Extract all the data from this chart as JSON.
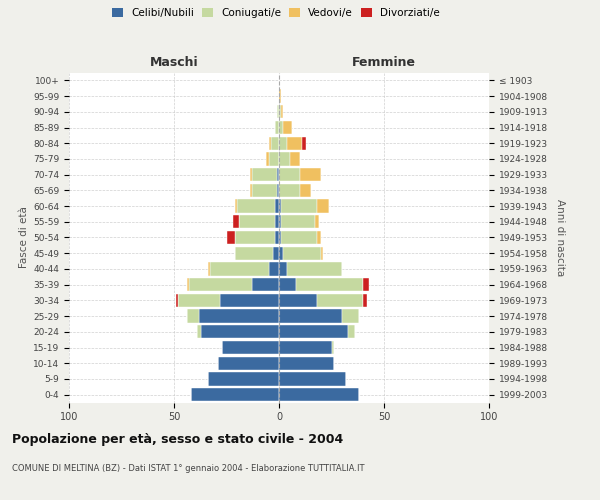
{
  "age_groups": [
    "0-4",
    "5-9",
    "10-14",
    "15-19",
    "20-24",
    "25-29",
    "30-34",
    "35-39",
    "40-44",
    "45-49",
    "50-54",
    "55-59",
    "60-64",
    "65-69",
    "70-74",
    "75-79",
    "80-84",
    "85-89",
    "90-94",
    "95-99",
    "100+"
  ],
  "birth_years": [
    "1999-2003",
    "1994-1998",
    "1989-1993",
    "1984-1988",
    "1979-1983",
    "1974-1978",
    "1969-1973",
    "1964-1968",
    "1959-1963",
    "1954-1958",
    "1949-1953",
    "1944-1948",
    "1939-1943",
    "1934-1938",
    "1929-1933",
    "1924-1928",
    "1919-1923",
    "1914-1918",
    "1909-1913",
    "1904-1908",
    "≤ 1903"
  ],
  "male": {
    "celibi": [
      42,
      34,
      29,
      27,
      37,
      38,
      28,
      13,
      5,
      3,
      2,
      2,
      2,
      1,
      1,
      0,
      0,
      0,
      0,
      0,
      0
    ],
    "coniugati": [
      0,
      0,
      0,
      0,
      2,
      6,
      20,
      30,
      28,
      18,
      19,
      17,
      18,
      12,
      12,
      5,
      4,
      2,
      1,
      0,
      0
    ],
    "vedovi": [
      0,
      0,
      0,
      0,
      0,
      0,
      0,
      1,
      1,
      0,
      0,
      0,
      1,
      1,
      1,
      1,
      1,
      0,
      0,
      0,
      0
    ],
    "divorziati": [
      0,
      0,
      0,
      0,
      0,
      0,
      1,
      0,
      0,
      0,
      4,
      3,
      0,
      0,
      0,
      0,
      0,
      0,
      0,
      0,
      0
    ]
  },
  "female": {
    "nubili": [
      38,
      32,
      26,
      25,
      33,
      30,
      18,
      8,
      4,
      2,
      1,
      1,
      1,
      0,
      0,
      0,
      0,
      0,
      0,
      0,
      0
    ],
    "coniugate": [
      0,
      0,
      0,
      1,
      3,
      8,
      22,
      32,
      26,
      18,
      17,
      16,
      17,
      10,
      10,
      5,
      4,
      2,
      1,
      0,
      0
    ],
    "vedove": [
      0,
      0,
      0,
      0,
      0,
      0,
      0,
      0,
      0,
      1,
      2,
      2,
      6,
      5,
      10,
      5,
      7,
      4,
      1,
      1,
      0
    ],
    "divorziate": [
      0,
      0,
      0,
      0,
      0,
      0,
      2,
      3,
      0,
      0,
      0,
      0,
      0,
      0,
      0,
      0,
      2,
      0,
      0,
      0,
      0
    ]
  },
  "colors": {
    "celibi": "#3b6aa0",
    "coniugati": "#c5d9a0",
    "vedovi": "#f0c060",
    "divorziati": "#cc2020"
  },
  "xlim": 100,
  "title": "Popolazione per età, sesso e stato civile - 2004",
  "subtitle": "COMUNE DI MELTINA (BZ) - Dati ISTAT 1° gennaio 2004 - Elaborazione TUTTITALIA.IT",
  "xlabel_left": "Maschi",
  "xlabel_right": "Femmine",
  "ylabel_left": "Fasce di età",
  "ylabel_right": "Anni di nascita",
  "background_color": "#f0f0eb",
  "plot_background": "#ffffff"
}
